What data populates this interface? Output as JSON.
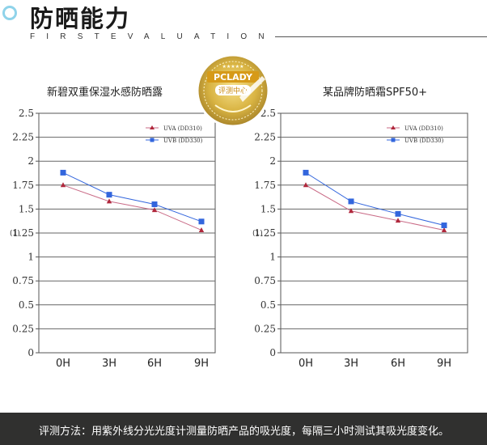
{
  "header": {
    "title": "防晒能力",
    "subtitle": "FIRSTEVALUATION"
  },
  "badge": {
    "brand": "PCLADY",
    "label": "评测中心",
    "stars": "★★★★★"
  },
  "colors": {
    "uva": "#c96a86",
    "uvb": "#3366dd",
    "footer_bg": "#30302f",
    "accent": "#8fd3ea"
  },
  "chart_data": [
    {
      "type": "line",
      "title": "新碧双重保湿水感防晒露",
      "ylabel": "(1)",
      "categories": [
        "0H",
        "3H",
        "6H",
        "9H"
      ],
      "y_ticks": [
        "0",
        "0.25",
        "0.5",
        "0.75",
        "1",
        "1.25",
        "1.5",
        "1.75",
        "2",
        "2.25",
        "2.5"
      ],
      "ylim": [
        0,
        2.5
      ],
      "legend_position": "top-right",
      "series": [
        {
          "name": "UVA (DD310)",
          "marker": "triangle",
          "values": [
            1.75,
            1.58,
            1.49,
            1.28
          ]
        },
        {
          "name": "UVB (DD330)",
          "marker": "square",
          "values": [
            1.88,
            1.65,
            1.55,
            1.37
          ]
        }
      ]
    },
    {
      "type": "line",
      "title": "某品牌防晒霜SPF50+",
      "ylabel": "(1)",
      "categories": [
        "0H",
        "3H",
        "6H",
        "9H"
      ],
      "y_ticks": [
        "0",
        "0.25",
        "0.5",
        "0.75",
        "1",
        "1.25",
        "1.5",
        "1.75",
        "2",
        "2.25",
        "2.5"
      ],
      "ylim": [
        0,
        2.5
      ],
      "legend_position": "top-right",
      "series": [
        {
          "name": "UVA (DD310)",
          "marker": "triangle",
          "values": [
            1.75,
            1.48,
            1.38,
            1.28
          ]
        },
        {
          "name": "UVB (DD330)",
          "marker": "square",
          "values": [
            1.88,
            1.58,
            1.45,
            1.33
          ]
        }
      ]
    }
  ],
  "footer": {
    "text": "评测方法：用紫外线分光光度计测量防晒产品的吸光度，每隔三小时测试其吸光度变化。"
  }
}
